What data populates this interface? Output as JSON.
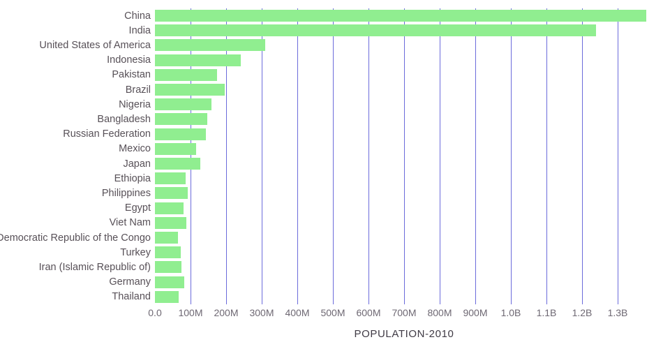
{
  "chart_data": {
    "type": "bar",
    "orientation": "horizontal",
    "title": "",
    "xlabel": "POPULATION-2010",
    "ylabel": "",
    "xlim": [
      0,
      1400000000
    ],
    "grid": true,
    "legend": "none",
    "categories": [
      "China",
      "India",
      "United States of America",
      "Indonesia",
      "Pakistan",
      "Brazil",
      "Nigeria",
      "Bangladesh",
      "Russian Federation",
      "Mexico",
      "Japan",
      "Ethiopia",
      "Philippines",
      "Egypt",
      "Viet Nam",
      "Democratic Republic of the Congo",
      "Turkey",
      "Iran (Islamic Republic of)",
      "Germany",
      "Thailand"
    ],
    "values": [
      1380000000,
      1240000000,
      309000000,
      242000000,
      174000000,
      196000000,
      158000000,
      148000000,
      143000000,
      115000000,
      128000000,
      87000000,
      93000000,
      81000000,
      88000000,
      64000000,
      72000000,
      74000000,
      82000000,
      67000000
    ],
    "xticks": {
      "labels": [
        "0.0",
        "100M",
        "200M",
        "300M",
        "400M",
        "500M",
        "600M",
        "700M",
        "800M",
        "900M",
        "1.0B",
        "1.1B",
        "1.2B",
        "1.3B"
      ],
      "values": [
        0,
        100000000,
        200000000,
        300000000,
        400000000,
        500000000,
        600000000,
        700000000,
        800000000,
        900000000,
        1000000000,
        1100000000,
        1200000000,
        1300000000
      ]
    },
    "colors": {
      "bar": "#90ee90",
      "gridline": "#6b6bdb",
      "label_text": "#575057",
      "tick_text": "#6e6873",
      "title_text": "#3f3a44",
      "background": "#ffffff"
    }
  }
}
